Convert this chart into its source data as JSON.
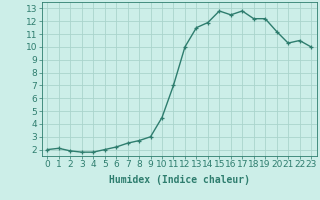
{
  "x": [
    0,
    1,
    2,
    3,
    4,
    5,
    6,
    7,
    8,
    9,
    10,
    11,
    12,
    13,
    14,
    15,
    16,
    17,
    18,
    19,
    20,
    21,
    22,
    23
  ],
  "y": [
    2.0,
    2.1,
    1.9,
    1.8,
    1.8,
    2.0,
    2.2,
    2.5,
    2.7,
    3.0,
    4.5,
    7.0,
    10.0,
    11.5,
    11.9,
    12.8,
    12.5,
    12.8,
    12.2,
    12.2,
    11.2,
    10.3,
    10.5,
    10.0
  ],
  "line_color": "#2e7d6e",
  "marker": "+",
  "marker_size": 3,
  "bg_color": "#cceee8",
  "grid_color": "#aad4cc",
  "xlabel": "Humidex (Indice chaleur)",
  "xlim": [
    -0.5,
    23.5
  ],
  "ylim": [
    1.5,
    13.5
  ],
  "yticks": [
    2,
    3,
    4,
    5,
    6,
    7,
    8,
    9,
    10,
    11,
    12,
    13
  ],
  "xticks": [
    0,
    1,
    2,
    3,
    4,
    5,
    6,
    7,
    8,
    9,
    10,
    11,
    12,
    13,
    14,
    15,
    16,
    17,
    18,
    19,
    20,
    21,
    22,
    23
  ],
  "xlabel_fontsize": 7,
  "tick_fontsize": 6.5,
  "line_width": 1.0
}
